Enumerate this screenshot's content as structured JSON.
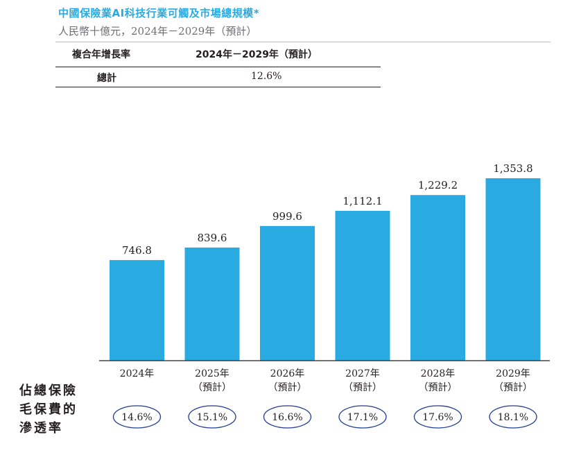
{
  "title": "中國保險業AI科技行業可觸及市場總規模*",
  "subtitle": "人民幣十億元，2024年－2029年（預計）",
  "cagr_table": {
    "header_left": "複合年增長率",
    "header_right": "2024年－2029年（預計）",
    "row_label": "總計",
    "row_value": "12.6%"
  },
  "penetration_label": [
    "佔總保險",
    "毛保費的",
    "滲透率"
  ],
  "colors": {
    "bar": "#29abe2",
    "accent": "#29abe2",
    "ellipse": "#1f3a93"
  },
  "chart_data": {
    "type": "bar",
    "categories": [
      "2024年",
      "2025年",
      "2026年",
      "2027年",
      "2028年",
      "2029年"
    ],
    "category_notes": [
      "",
      "（預計）",
      "（預計）",
      "（預計）",
      "（預計）",
      "（預計）"
    ],
    "values": [
      746.8,
      839.6,
      999.6,
      1112.1,
      1229.2,
      1353.8
    ],
    "value_labels": [
      "746.8",
      "839.6",
      "999.6",
      "1,112.1",
      "1,229.2",
      "1,353.8"
    ],
    "penetration_rates": [
      "14.6%",
      "15.1%",
      "16.6%",
      "17.1%",
      "17.6%",
      "18.1%"
    ],
    "ylim": [
      0,
      1353.8
    ],
    "grid": false
  }
}
